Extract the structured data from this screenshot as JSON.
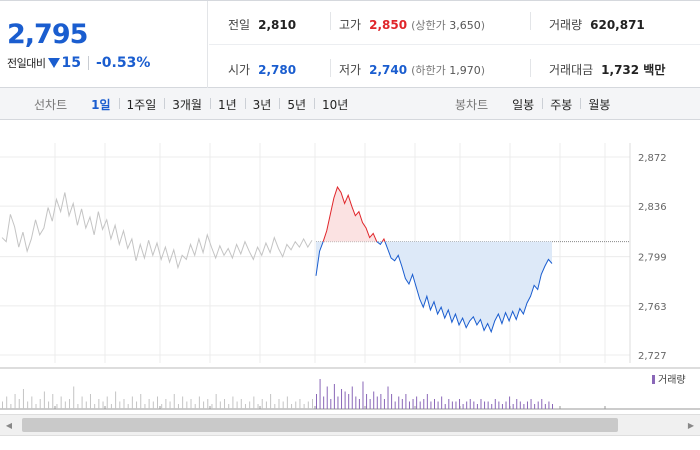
{
  "quote": {
    "price": "2,795",
    "change_label": "전일대비",
    "change_amount": "15",
    "change_percent": "-0.53%",
    "direction": "down",
    "prev_close": {
      "label": "전일",
      "value": "2,810"
    },
    "high": {
      "label": "고가",
      "value": "2,850",
      "limit_label": "상한가",
      "limit_value": "3,650"
    },
    "volume": {
      "label": "거래량",
      "value": "620,871"
    },
    "open": {
      "label": "시가",
      "value": "2,780"
    },
    "low": {
      "label": "저가",
      "value": "2,740",
      "limit_label": "하한가",
      "limit_value": "1,970"
    },
    "trade_value": {
      "label": "거래대금",
      "value": "1,732 백만"
    }
  },
  "tabs": {
    "line_title": "선차트",
    "line_periods": [
      "1일",
      "1주일",
      "3개월",
      "1년",
      "3년",
      "5년",
      "10년"
    ],
    "active_period": "1일",
    "candle_title": "봉차트",
    "candle_periods": [
      "일봉",
      "주봉",
      "월봉"
    ]
  },
  "chart_data": {
    "type": "line",
    "y_ticks": [
      "2,872",
      "2,836",
      "2,799",
      "2,763",
      "2,727"
    ],
    "ylim": [
      2727,
      2872
    ],
    "reference_price": 2810,
    "volume_legend": "거래량",
    "colors": {
      "up": "#e0262b",
      "down": "#1a5dcf",
      "prev_day": "#c4c4c4",
      "up_fill": "#fbe2e2",
      "down_fill": "#dde9f8",
      "volume": "#8a67b8"
    },
    "prev_day_series": [
      2813,
      2810,
      2830,
      2821,
      2806,
      2817,
      2803,
      2812,
      2826,
      2815,
      2820,
      2835,
      2825,
      2841,
      2832,
      2846,
      2829,
      2838,
      2822,
      2834,
      2820,
      2828,
      2815,
      2832,
      2819,
      2826,
      2812,
      2822,
      2808,
      2818,
      2805,
      2812,
      2796,
      2808,
      2798,
      2811,
      2800,
      2809,
      2797,
      2806,
      2795,
      2804,
      2791,
      2800,
      2797,
      2808,
      2800,
      2812,
      2802,
      2815,
      2806,
      2798,
      2807,
      2800,
      2805,
      2798,
      2808,
      2801,
      2810,
      2803,
      2797,
      2806,
      2800,
      2809,
      2802,
      2813,
      2805,
      2799,
      2808,
      2804,
      2810,
      2806,
      2812,
      2806,
      2811
    ],
    "today_series": [
      2785,
      2803,
      2810,
      2818,
      2830,
      2842,
      2850,
      2846,
      2838,
      2844,
      2836,
      2829,
      2832,
      2824,
      2820,
      2813,
      2816,
      2810,
      2808,
      2812,
      2805,
      2798,
      2796,
      2800,
      2792,
      2783,
      2779,
      2786,
      2777,
      2768,
      2762,
      2770,
      2760,
      2766,
      2757,
      2762,
      2754,
      2760,
      2751,
      2757,
      2749,
      2754,
      2747,
      2752,
      2755,
      2749,
      2753,
      2745,
      2750,
      2744,
      2752,
      2757,
      2750,
      2758,
      2752,
      2759,
      2753,
      2761,
      2757,
      2765,
      2770,
      2778,
      2775,
      2786,
      2792,
      2797,
      2794
    ],
    "prev_day_volume": [
      3,
      5,
      2,
      6,
      4,
      8,
      3,
      5,
      2,
      4,
      7,
      3,
      6,
      2,
      5,
      3,
      4,
      9,
      2,
      5,
      3,
      6,
      2,
      4,
      3,
      5,
      2,
      7,
      3,
      4,
      2,
      5,
      3,
      6,
      2,
      4,
      3,
      5,
      2,
      4,
      3,
      6,
      2,
      5,
      3,
      4,
      2,
      5,
      3,
      4,
      2,
      6,
      3,
      4,
      2,
      5,
      3,
      4,
      2,
      3,
      5,
      2,
      4,
      3,
      6,
      2,
      4,
      3,
      5,
      2,
      3,
      4,
      2,
      3,
      4
    ],
    "today_volume": [
      6,
      12,
      5,
      9,
      4,
      10,
      5,
      8,
      7,
      6,
      9,
      5,
      4,
      11,
      6,
      4,
      7,
      5,
      6,
      4,
      9,
      6,
      3,
      5,
      4,
      6,
      3,
      4,
      5,
      3,
      4,
      6,
      3,
      4,
      3,
      5,
      2,
      4,
      3,
      3,
      4,
      2,
      3,
      4,
      3,
      2,
      4,
      3,
      3,
      2,
      4,
      3,
      2,
      3,
      5,
      2,
      4,
      3,
      2,
      3,
      4,
      2,
      3,
      4,
      2,
      3,
      2
    ]
  },
  "scrollbar": {
    "left_icon": "◀",
    "right_icon": "▶"
  }
}
